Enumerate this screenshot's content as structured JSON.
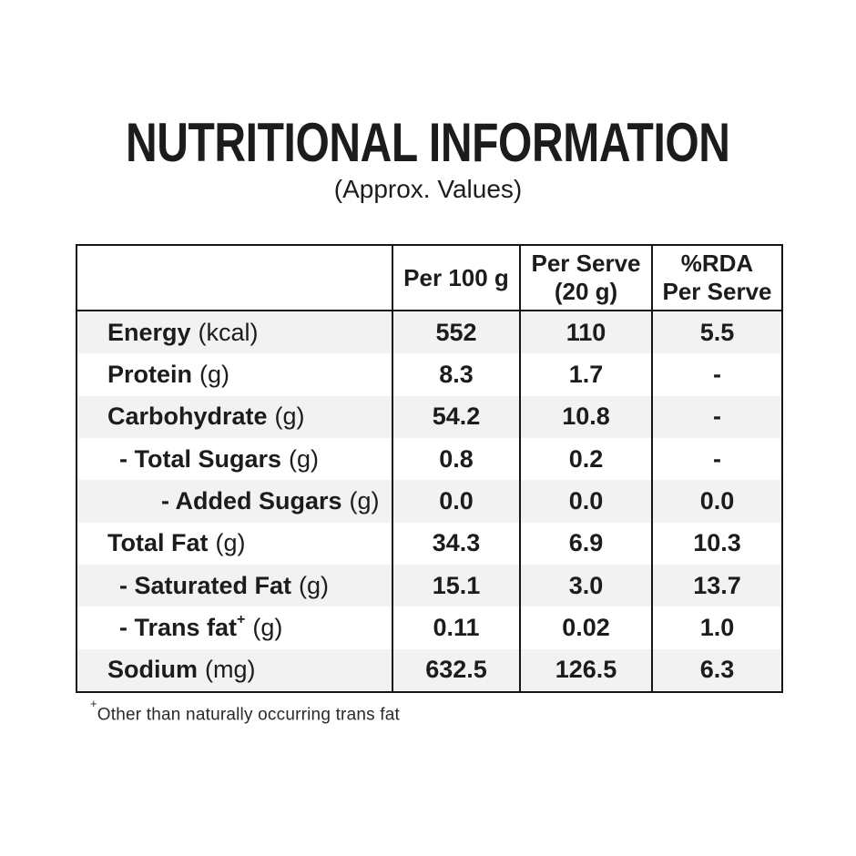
{
  "page": {
    "title": "NUTRITIONAL INFORMATION",
    "subtitle": "(Approx. Values)"
  },
  "table": {
    "header": {
      "product_col": "",
      "per_100g": "Per 100 g",
      "per_serve_line1": "Per Serve",
      "per_serve_line2": "(20 g)",
      "rda_line1": "%RDA",
      "rda_line2": "Per Serve"
    },
    "rows": [
      {
        "label": "Energy",
        "unit": "(kcal)",
        "per_100g": "552",
        "per_serve": "110",
        "rda_per_serve": "5.5"
      },
      {
        "label": "Protein",
        "unit": "(g)",
        "per_100g": "8.3",
        "per_serve": "1.7",
        "rda_per_serve": "-"
      },
      {
        "label": "Carbohydrate",
        "unit": "(g)",
        "per_100g": "54.2",
        "per_serve": "10.8",
        "rda_per_serve": "-"
      },
      {
        "label": "- Total Sugars",
        "unit": "(g)",
        "per_100g": "0.8",
        "per_serve": "0.2",
        "rda_per_serve": "-"
      },
      {
        "label": "- Added Sugars",
        "unit": "(g)",
        "per_100g": "0.0",
        "per_serve": "0.0",
        "rda_per_serve": "0.0"
      },
      {
        "label": "Total Fat",
        "unit": "(g)",
        "per_100g": "34.3",
        "per_serve": "6.9",
        "rda_per_serve": "10.3"
      },
      {
        "label": "- Saturated Fat",
        "unit": "(g)",
        "per_100g": "15.1",
        "per_serve": "3.0",
        "rda_per_serve": "13.7"
      },
      {
        "label": "- Trans fat",
        "sup": "+",
        "unit": "(g)",
        "per_100g": "0.11",
        "per_serve": "0.02",
        "rda_per_serve": "1.0"
      },
      {
        "label": "Sodium",
        "unit": "(mg)",
        "per_100g": "632.5",
        "per_serve": "126.5",
        "rda_per_serve": "6.3"
      }
    ]
  },
  "footnote": {
    "marker": "+",
    "text": "Other than naturally occurring trans fat"
  },
  "colors": {
    "background": "#ffffff",
    "stripe": "#f2f2f2",
    "border": "#161616",
    "text": "#1c1c1c"
  }
}
